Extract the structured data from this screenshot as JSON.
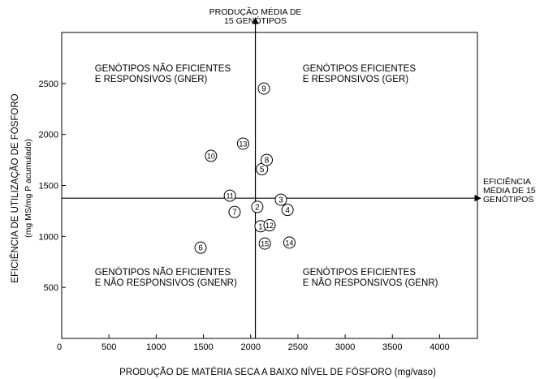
{
  "chart_data": {
    "type": "scatter",
    "title": "",
    "xlabel": "PRODUÇÃO DE MATÉRIA SECA A BAIXO  NÍVEL DE FÓSFORO (mg/vaso)",
    "ylabel": "EFICIÊNCIA DE UTILIZAÇÃO DE FÓSFORO",
    "ylabel_sub": "(mg MS/mg P acumulado)",
    "xlim": [
      0,
      4400
    ],
    "ylim": [
      0,
      3000
    ],
    "x_ticks": [
      0,
      500,
      1000,
      1500,
      2000,
      2500,
      3000,
      3500,
      4000
    ],
    "y_ticks": [
      500,
      1000,
      1500,
      2000,
      2500
    ],
    "origin_label": "0",
    "mean_x": 2050,
    "mean_y": 1375,
    "mean_x_label": [
      "PRODUÇÃO MÉDIA DE",
      "15 GENÓTIPOS"
    ],
    "mean_y_label": [
      "EFICIÊNCIA",
      "MÉDIA DE 15",
      "GENÓTIPOS"
    ],
    "quadrants": [
      {
        "lines": [
          "GENÓTIPOS NÃO EFICIENTES",
          "E RESPONSIVOS (GNER)"
        ],
        "x": 350,
        "y": 2620
      },
      {
        "lines": [
          "GENÓTIPOS EFICIENTES",
          "E RESPONSIVOS (GER)"
        ],
        "x": 2550,
        "y": 2620
      },
      {
        "lines": [
          "GENÓTIPOS NÃO EFICIENTES",
          "E NÃO RESPONSIVOS (GNENR)"
        ],
        "x": 350,
        "y": 620
      },
      {
        "lines": [
          "GENÓTIPOS EFICIENTES",
          "E NÃO RESPONSIVOS (GENR)"
        ],
        "x": 2550,
        "y": 620
      }
    ],
    "points": [
      {
        "label": "1",
        "x": 2105,
        "y": 1100
      },
      {
        "label": "2",
        "x": 2070,
        "y": 1290
      },
      {
        "label": "3",
        "x": 2320,
        "y": 1360
      },
      {
        "label": "4",
        "x": 2390,
        "y": 1260
      },
      {
        "label": "5",
        "x": 2120,
        "y": 1660
      },
      {
        "label": "6",
        "x": 1470,
        "y": 890
      },
      {
        "label": "7",
        "x": 1830,
        "y": 1240
      },
      {
        "label": "8",
        "x": 2170,
        "y": 1750
      },
      {
        "label": "9",
        "x": 2140,
        "y": 2450
      },
      {
        "label": "10",
        "x": 1580,
        "y": 1790
      },
      {
        "label": "11",
        "x": 1780,
        "y": 1400
      },
      {
        "label": "12",
        "x": 2200,
        "y": 1110
      },
      {
        "label": "13",
        "x": 1920,
        "y": 1910
      },
      {
        "label": "14",
        "x": 2410,
        "y": 940
      },
      {
        "label": "15",
        "x": 2150,
        "y": 930
      }
    ]
  }
}
